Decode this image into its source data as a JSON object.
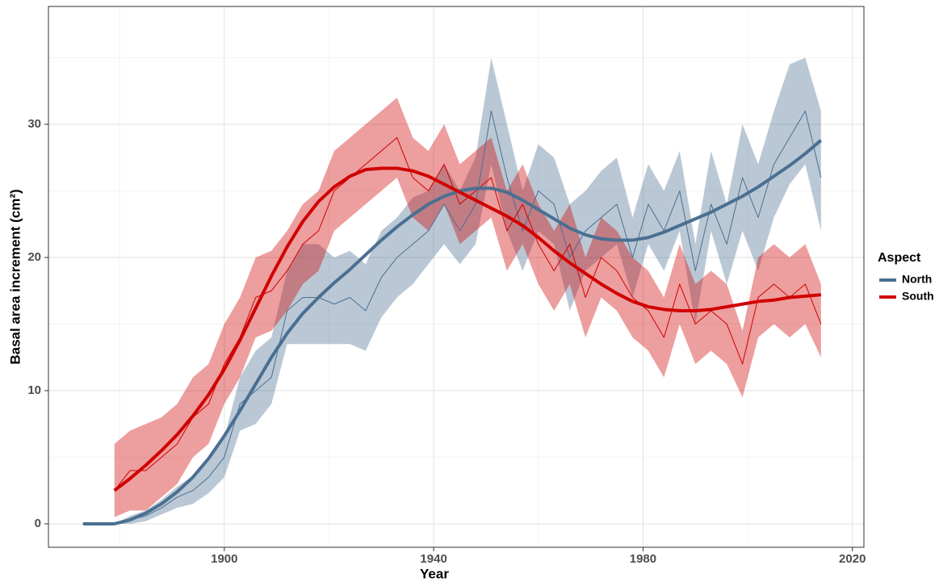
{
  "chart_data": {
    "type": "line",
    "xlabel": "Year",
    "ylabel": "Basal area increment (cm²)",
    "legend_title": "Aspect",
    "legend": "right",
    "grid": true,
    "xlim": [
      1866.4,
      2022.2
    ],
    "xticks": [
      1900,
      1940,
      1980,
      2020
    ],
    "x_minor_grid": [
      1880,
      1920,
      1960,
      2000
    ],
    "ylim": [
      -1.76,
      38.85
    ],
    "yticks": [
      0,
      10,
      20,
      30
    ],
    "y_minor_grid": [
      5,
      15,
      25,
      35
    ],
    "x": [
      1873,
      1876,
      1879,
      1882,
      1885,
      1888,
      1891,
      1894,
      1897,
      1900,
      1903,
      1906,
      1909,
      1912,
      1915,
      1918,
      1921,
      1924,
      1927,
      1930,
      1933,
      1936,
      1939,
      1942,
      1945,
      1948,
      1951,
      1954,
      1957,
      1960,
      1963,
      1966,
      1969,
      1972,
      1975,
      1978,
      1981,
      1984,
      1987,
      1990,
      1993,
      1996,
      1999,
      2002,
      2005,
      2008,
      2011,
      2014
    ],
    "series": [
      {
        "name": "North",
        "color": "#4a6f91",
        "values": [
          0,
          0,
          0,
          0.3,
          0.6,
          1.2,
          2.0,
          2.5,
          3.5,
          5.0,
          9,
          10,
          11,
          16,
          17,
          17,
          16.5,
          17,
          16,
          18.5,
          20,
          21,
          22,
          24,
          22,
          24,
          31,
          26,
          22,
          25,
          24,
          20,
          22,
          23,
          24,
          20,
          24,
          22,
          25,
          19,
          24,
          21,
          26,
          23,
          27,
          29,
          31,
          26
        ],
        "lower": [
          0,
          0,
          0,
          0,
          0.2,
          0.7,
          1.2,
          1.5,
          2.3,
          3.5,
          7,
          7.5,
          9,
          13.5,
          13.5,
          13.5,
          13.5,
          13.5,
          13,
          15.5,
          17,
          18,
          19.5,
          21,
          19.5,
          21,
          27,
          22,
          19,
          22,
          21,
          16,
          19,
          20,
          21,
          17,
          21,
          19,
          22,
          15,
          22,
          18,
          22,
          19,
          23,
          25.5,
          27,
          22
        ],
        "upper": [
          0,
          0,
          0,
          0.6,
          1.0,
          1.8,
          2.8,
          3.6,
          4.7,
          6.5,
          11,
          13,
          14,
          19,
          21,
          21,
          20,
          20.5,
          19.5,
          22,
          23,
          24.5,
          25,
          27,
          25,
          27.5,
          35,
          30,
          25,
          28.5,
          27.5,
          24,
          25,
          26.5,
          27.5,
          23,
          27,
          25,
          28,
          21,
          28,
          24,
          30,
          27,
          31,
          34.5,
          35,
          31
        ],
        "fit": [
          0,
          0,
          0,
          0.3,
          0.8,
          1.5,
          2.4,
          3.5,
          4.9,
          6.6,
          8.5,
          10.5,
          12.5,
          14.3,
          15.8,
          17.0,
          18.1,
          19.1,
          20.2,
          21.3,
          22.3,
          23.2,
          24.0,
          24.6,
          25.0,
          25.2,
          25.2,
          24.9,
          24.3,
          23.6,
          22.9,
          22.2,
          21.7,
          21.4,
          21.3,
          21.3,
          21.5,
          21.9,
          22.4,
          22.9,
          23.4,
          24.0,
          24.6,
          25.3,
          26.1,
          26.9,
          27.8,
          28.8
        ]
      },
      {
        "name": "South",
        "color": "#d00000",
        "values": [
          null,
          null,
          2.5,
          4,
          4,
          5,
          6,
          8,
          9,
          12,
          14,
          17,
          17.5,
          19,
          21,
          22,
          25,
          26,
          27,
          28,
          29,
          26,
          25,
          27,
          24,
          25,
          26,
          22,
          24,
          21,
          19,
          21,
          17,
          20,
          19,
          17,
          16,
          14,
          18,
          15,
          16,
          15,
          12,
          17,
          18,
          17,
          18,
          15
        ],
        "lower": [
          null,
          null,
          0.5,
          1,
          1,
          2,
          3,
          5,
          6,
          9,
          11,
          14,
          14.5,
          16,
          18,
          19,
          22,
          23,
          24,
          25,
          26,
          23,
          22,
          24,
          21,
          22,
          23,
          19,
          21,
          18,
          16,
          18,
          14,
          17,
          16,
          14,
          13,
          11,
          15,
          12,
          13,
          12,
          9.5,
          14,
          15,
          14,
          15,
          12.5
        ],
        "upper": [
          null,
          null,
          6,
          7,
          7.5,
          8,
          9,
          11,
          12,
          15,
          17,
          20,
          20.5,
          22,
          24,
          25,
          28,
          29,
          30,
          31,
          32,
          29,
          28,
          30,
          27,
          28,
          29,
          25,
          27,
          24,
          22,
          24,
          20,
          23,
          22,
          20,
          19,
          17,
          21,
          18,
          19,
          18,
          14.5,
          20,
          21,
          20,
          21,
          18
        ],
        "fit": [
          null,
          null,
          2.5,
          3.4,
          4.4,
          5.5,
          6.7,
          8.1,
          9.7,
          11.6,
          13.8,
          16.2,
          18.6,
          20.8,
          22.7,
          24.2,
          25.3,
          26.1,
          26.6,
          26.7,
          26.7,
          26.5,
          26.1,
          25.5,
          24.9,
          24.3,
          23.7,
          23.1,
          22.4,
          21.5,
          20.5,
          19.6,
          18.8,
          18.0,
          17.3,
          16.7,
          16.3,
          16.1,
          16.0,
          16.0,
          16.1,
          16.3,
          16.5,
          16.7,
          16.8,
          17.0,
          17.1,
          17.2
        ]
      }
    ]
  }
}
